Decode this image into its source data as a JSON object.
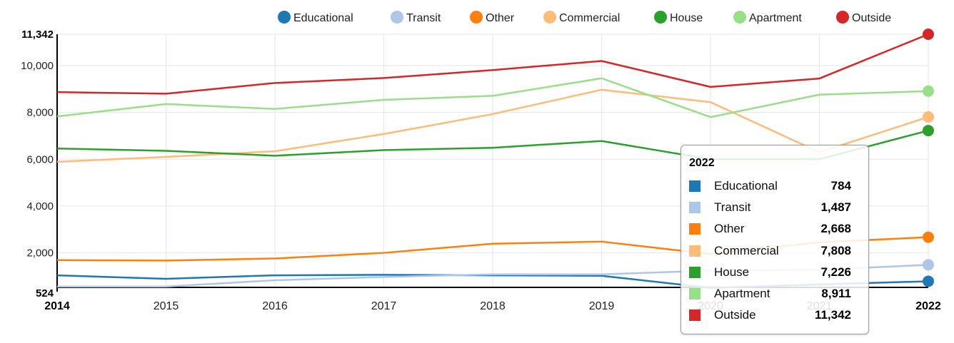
{
  "chart_data": {
    "type": "line",
    "x": [
      2014,
      2015,
      2016,
      2017,
      2018,
      2019,
      2020,
      2021,
      2022
    ],
    "x_ticks": [
      "2014",
      "2015",
      "2016",
      "2017",
      "2018",
      "2019",
      "2020",
      "2021",
      "2022"
    ],
    "ylim": [
      524,
      11342
    ],
    "y_ticks": [
      2000,
      4000,
      6000,
      8000,
      10000
    ],
    "y_tick_labels": [
      "2,000",
      "4,000",
      "6,000",
      "8,000",
      "10,000"
    ],
    "y_min_label": "524",
    "y_max_label": "11,342",
    "grid": true,
    "legend_position": "top-right",
    "series": [
      {
        "name": "Educational",
        "color": "#1f77b4",
        "values": [
          1040,
          890,
          1040,
          1060,
          1040,
          1020,
          500,
          650,
          784
        ]
      },
      {
        "name": "Transit",
        "color": "#aec7e8",
        "values": [
          560,
          560,
          830,
          970,
          1080,
          1080,
          1240,
          1280,
          1487
        ]
      },
      {
        "name": "Other",
        "color": "#ff7f0e",
        "values": [
          1690,
          1670,
          1760,
          2000,
          2390,
          2480,
          1950,
          2450,
          2668
        ]
      },
      {
        "name": "Commercial",
        "color": "#ffbb78",
        "values": [
          5890,
          6100,
          6340,
          7080,
          7930,
          8970,
          8440,
          6300,
          7808
        ]
      },
      {
        "name": "House",
        "color": "#2ca02c",
        "values": [
          6460,
          6360,
          6150,
          6390,
          6490,
          6780,
          6000,
          6000,
          7226
        ]
      },
      {
        "name": "Apartment",
        "color": "#98df8a",
        "values": [
          7830,
          8360,
          8150,
          8540,
          8710,
          9460,
          7800,
          8760,
          8911
        ]
      },
      {
        "name": "Outside",
        "color": "#d62728",
        "values": [
          8870,
          8800,
          9260,
          9470,
          9810,
          10200,
          9090,
          9450,
          11342
        ]
      }
    ]
  },
  "tooltip": {
    "title": "2022",
    "rows": [
      {
        "name": "Educational",
        "value": "784",
        "color": "#1f77b4"
      },
      {
        "name": "Transit",
        "value": "1,487",
        "color": "#aec7e8"
      },
      {
        "name": "Other",
        "value": "2,668",
        "color": "#ff7f0e"
      },
      {
        "name": "Commercial",
        "value": "7,808",
        "color": "#ffbb78"
      },
      {
        "name": "House",
        "value": "7,226",
        "color": "#2ca02c"
      },
      {
        "name": "Apartment",
        "value": "8,911",
        "color": "#98df8a"
      },
      {
        "name": "Outside",
        "value": "11,342",
        "color": "#d62728"
      }
    ]
  }
}
